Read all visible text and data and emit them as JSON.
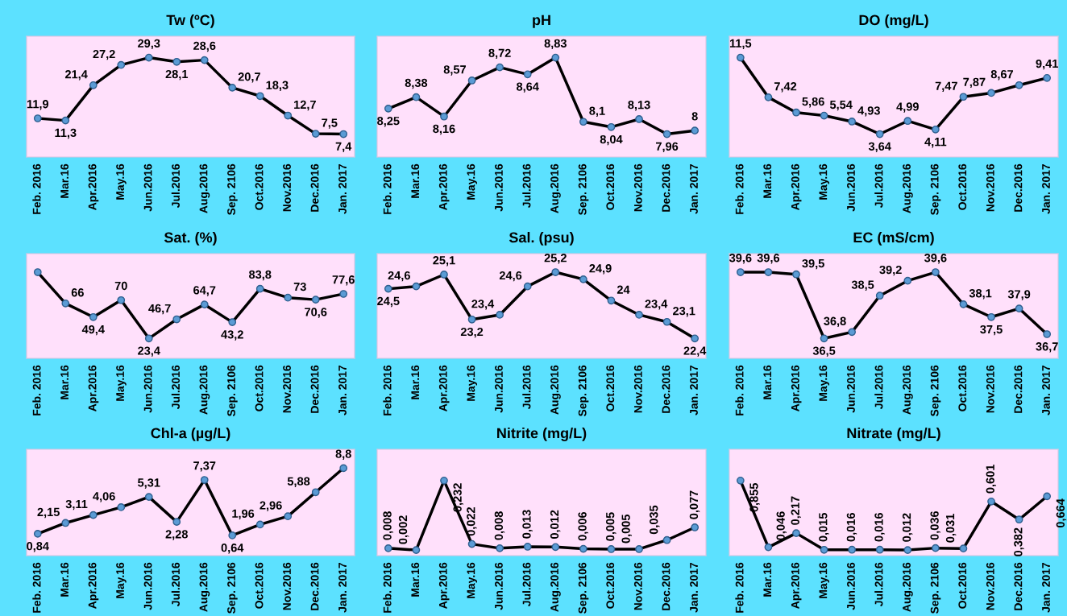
{
  "chart_data": [
    {
      "type": "line",
      "title": "Tw (ºC)",
      "categories": [
        "Feb. 2016",
        "Mar.16",
        "Apr.2016",
        "May.16",
        "Jun.2016",
        "Jul.2016",
        "Aug.2016",
        "Sep. 2106",
        "Oct.2016",
        "Nov.2016",
        "Dec.2016",
        "Jan. 2017"
      ],
      "series": [
        {
          "color": "#000000",
          "values": [
            11.9,
            11.3,
            21.4,
            27.2,
            29.3,
            28.1,
            28.6,
            20.7,
            18.3,
            12.7,
            7.5,
            7.4
          ],
          "value_labels": [
            "11,9",
            "11,3",
            "21,4",
            "27,2",
            "29,3",
            "28,1",
            "28,6",
            "20,7",
            "18,3",
            "12,7",
            "7,5",
            "7,4"
          ]
        }
      ],
      "marker": "circle",
      "grid": false,
      "legend": false
    },
    {
      "type": "line",
      "title": "pH",
      "categories": [
        "Feb. 2016",
        "Mar.16",
        "Apr.2016",
        "May.16",
        "Jun.2016",
        "Jul.2016",
        "Aug.2016",
        "Sep. 2106",
        "Oct.2016",
        "Nov.2016",
        "Dec.2016",
        "Jan. 2017"
      ],
      "series": [
        {
          "color": "#000000",
          "values": [
            8.25,
            8.38,
            8.16,
            8.57,
            8.72,
            8.64,
            8.83,
            8.1,
            8.04,
            8.13,
            7.96,
            8
          ],
          "value_labels": [
            "8,25",
            "8,38",
            "8,16",
            "8,57",
            "8,72",
            "8,64",
            "8,83",
            "8,1",
            "8,04",
            "8,13",
            "7,96",
            "8"
          ]
        }
      ],
      "marker": "circle",
      "grid": false,
      "legend": false
    },
    {
      "type": "line",
      "title": "DO (mg/L)",
      "categories": [
        "Feb. 2016",
        "Mar.16",
        "Apr.2016",
        "May.16",
        "Jun.2016",
        "Jul.2016",
        "Aug.2016",
        "Sep. 2106",
        "Oct.2016",
        "Nov.2016",
        "Dec.2016",
        "Jan. 2017"
      ],
      "series": [
        {
          "color": "#000000",
          "values": [
            11.5,
            7.42,
            5.86,
            5.54,
            4.93,
            3.64,
            4.99,
            4.11,
            7.47,
            7.87,
            8.67,
            9.41
          ],
          "value_labels": [
            "11,5",
            "7,42",
            "5,86",
            "5,54",
            "4,93",
            "3,64",
            "4,99",
            "4,11",
            "7,47",
            "7,87",
            "8,67",
            "9,41"
          ]
        }
      ],
      "marker": "circle",
      "grid": false,
      "legend": false
    },
    {
      "type": "line",
      "title": "Sat. (%)",
      "categories": [
        "Feb. 2016",
        "Mar.16",
        "Apr.2016",
        "May.16",
        "Jun.2016",
        "Jul.2016",
        "Aug.2016",
        "Sep. 2106",
        "Oct.2016",
        "Nov.2016",
        "Dec.2016",
        "Jan. 2017"
      ],
      "series": [
        {
          "color": "#000000",
          "values": [
            104,
            66,
            49.4,
            70,
            23.4,
            46.7,
            64.7,
            43.2,
            83.8,
            73,
            70.6,
            77.6
          ],
          "value_labels": [
            null,
            "66",
            "49,4",
            "70",
            "23,4",
            "46,7",
            "64,7",
            "43,2",
            "83,8",
            "73",
            "70,6",
            "77,6"
          ]
        }
      ],
      "marker": "circle",
      "grid": false,
      "legend": false
    },
    {
      "type": "line",
      "title": "Sal. (psu)",
      "categories": [
        "Feb. 2016",
        "Mar.16",
        "Apr.2016",
        "May.16",
        "Jun.2016",
        "Jul.2016",
        "Aug.2016",
        "Sep. 2106",
        "Oct.2016",
        "Nov.2016",
        "Dec.2016",
        "Jan. 2017"
      ],
      "series": [
        {
          "color": "#000000",
          "values": [
            24.5,
            24.6,
            25.1,
            23.2,
            23.4,
            24.6,
            25.2,
            24.9,
            24,
            23.4,
            23.1,
            22.4
          ],
          "value_labels": [
            "24,5",
            "24,6",
            "25,1",
            "23,2",
            "23,4",
            "24,6",
            "25,2",
            "24,9",
            "24",
            "23,4",
            "23,1",
            "22,4"
          ]
        }
      ],
      "marker": "circle",
      "grid": false,
      "legend": false
    },
    {
      "type": "line",
      "title": "EC (mS/cm)",
      "categories": [
        "Feb. 2016",
        "Mar.16",
        "Apr.2016",
        "May.16",
        "Jun.2016",
        "Jul.2016",
        "Aug.2016",
        "Sep. 2106",
        "Oct.2016",
        "Nov.2016",
        "Dec.2016",
        "Jan. 2017"
      ],
      "series": [
        {
          "color": "#000000",
          "values": [
            39.6,
            39.6,
            39.5,
            36.5,
            36.8,
            38.5,
            39.2,
            39.6,
            38.1,
            37.5,
            37.9,
            36.7
          ],
          "value_labels": [
            "39,6",
            "39,6",
            "39,5",
            "36,5",
            "36,8",
            "38,5",
            "39,2",
            "39,6",
            "38,1",
            "37,5",
            "37,9",
            "36,7"
          ]
        }
      ],
      "marker": "circle",
      "grid": false,
      "legend": false
    },
    {
      "type": "line",
      "title": "Chl-a (µg/L)",
      "categories": [
        "Feb. 2016",
        "Mar.16",
        "Apr.2016",
        "May.16",
        "Jun.2016",
        "Jul.2016",
        "Aug.2016",
        "Sep. 2106",
        "Oct.2016",
        "Nov.2016",
        "Dec.2016",
        "Jan. 2017"
      ],
      "series": [
        {
          "color": "#000000",
          "values": [
            0.84,
            2.15,
            3.11,
            4.06,
            5.31,
            2.28,
            7.37,
            0.64,
            1.96,
            2.96,
            5.88,
            8.8
          ],
          "value_labels": [
            "0,84",
            "2,15",
            "3,11",
            "4,06",
            "5,31",
            "2,28",
            "7,37",
            "0,64",
            "1,96",
            "2,96",
            "5,88",
            "8,8"
          ]
        }
      ],
      "marker": "circle",
      "grid": false,
      "legend": false
    },
    {
      "type": "line",
      "title": "Nitrite (mg/L)",
      "categories": [
        "Feb. 2016",
        "Mar.16",
        "Apr.2016",
        "May.16",
        "Jun.2016",
        "Jul.2016",
        "Aug.2016",
        "Sep. 2106",
        "Oct.2016",
        "Nov.2016",
        "Dec.2016",
        "Jan. 2017"
      ],
      "series": [
        {
          "color": "#000000",
          "values": [
            0.008,
            0.002,
            0.232,
            0.022,
            0.008,
            0.013,
            0.012,
            0.006,
            0.005,
            0.005,
            0.035,
            0.077
          ],
          "value_labels": [
            "0,008",
            "0,002",
            "0,232",
            "0,022",
            "0,008",
            "0,013",
            "0,012",
            "0,006",
            "0,005",
            "0,005",
            "0,035",
            "0,077"
          ]
        }
      ],
      "marker": "circle",
      "grid": false,
      "legend": false
    },
    {
      "type": "line",
      "title": "Nitrate (mg/L)",
      "categories": [
        "Feb. 2016",
        "Mar.16",
        "Apr.2016",
        "May.16",
        "Jun.2016",
        "Jul.2016",
        "Aug.2016",
        "Sep. 2106",
        "Oct.2016",
        "Nov.2016",
        "Dec.2016",
        "Jan. 2017"
      ],
      "series": [
        {
          "color": "#000000",
          "values": [
            0.855,
            0.046,
            0.217,
            0.015,
            0.016,
            0.016,
            0.012,
            0.036,
            0.031,
            0.601,
            0.382,
            0.664
          ],
          "value_labels": [
            "0,855",
            "0,046",
            "0,217",
            "0,015",
            "0,016",
            "0,016",
            "0,012",
            "0,036",
            "0,031",
            "0,601",
            "0,382",
            "0,664"
          ]
        }
      ],
      "marker": "circle",
      "grid": false,
      "legend": false
    }
  ]
}
